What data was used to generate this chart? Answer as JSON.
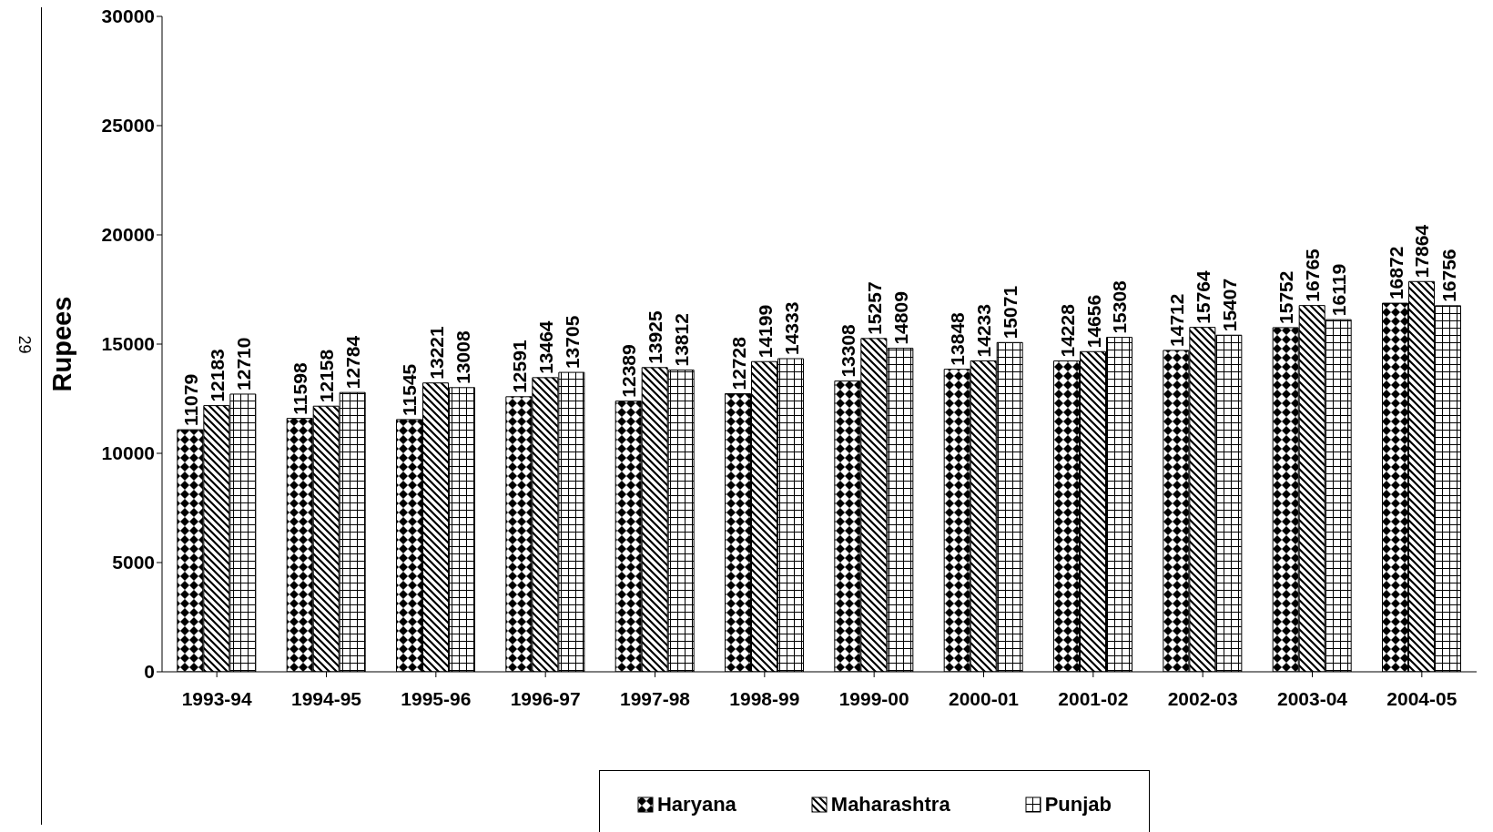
{
  "chart_data": {
    "type": "bar",
    "ylabel": "Rupees",
    "categories": [
      "1993-94",
      "1994-95",
      "1995-96",
      "1996-97",
      "1997-98",
      "1998-99",
      "1999-00",
      "2000-01",
      "2001-02",
      "2002-03",
      "2003-04",
      "2004-05"
    ],
    "series": [
      {
        "name": "Haryana",
        "color": "#000000",
        "values": [
          11079,
          11598,
          11545,
          12591,
          12389,
          12728,
          13308,
          13848,
          14228,
          14712,
          15752,
          16872
        ]
      },
      {
        "name": "Maharashtra",
        "color": "#000000",
        "values": [
          12183,
          12158,
          13221,
          13464,
          13925,
          14199,
          15257,
          14233,
          14656,
          15764,
          16765,
          17864
        ]
      },
      {
        "name": "Punjab",
        "color": "#000000",
        "values": [
          12710,
          12784,
          13008,
          13705,
          13812,
          14333,
          14809,
          15071,
          15308,
          15407,
          16119,
          16756
        ]
      }
    ],
    "ylim": [
      0,
      30000
    ],
    "yticks": [
      0,
      5000,
      10000,
      15000,
      20000,
      25000,
      30000
    ],
    "grid": false,
    "legend": "bottom",
    "data_labels": true,
    "annotations": [
      "29"
    ]
  }
}
